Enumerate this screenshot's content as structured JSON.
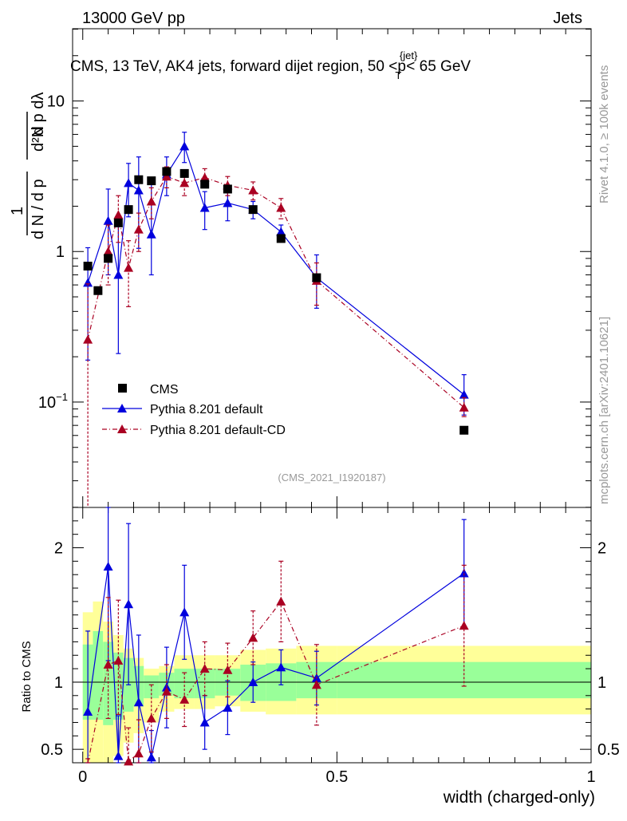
{
  "header": {
    "left": "13000 GeV pp",
    "right": "Jets"
  },
  "side_labels": {
    "rivet": "Rivet 4.1.0, ≥ 100k events",
    "mcplots": "mcplots.cern.ch [arXiv:2401.10621]"
  },
  "chart_data": {
    "type": "scatter",
    "title": "CMS, 13 TeV, AK4 jets, forward dijet region, 50 <p",
    "title_sup": "{jet}",
    "title_sub": "T",
    "title_suffix": "< 65 GeV",
    "analysis_id": "(CMS_2021_I1920187)",
    "xlabel": "width (charged-only)",
    "ylabel_main": "1/(dN/dpT) d²N/(dpT dλ)",
    "ylabel_ratio": "Ratio to CMS",
    "xlim": [
      -0.02,
      1.0
    ],
    "ylim_main_log10": [
      -1.7,
      1.48
    ],
    "ylim_ratio": [
      0.4,
      2.3
    ],
    "x_ticks": [
      {
        "v": 0,
        "label": "0"
      },
      {
        "v": 0.5,
        "label": "0.5"
      },
      {
        "v": 1,
        "label": "1"
      }
    ],
    "y_ticks_main": [
      {
        "v": 0.1,
        "label": "10",
        "sup": "−1"
      },
      {
        "v": 1,
        "label": "1",
        "sup": ""
      },
      {
        "v": 10,
        "label": "10",
        "sup": ""
      }
    ],
    "y_ticks_ratio": [
      {
        "v": 0.5,
        "label": "0.5"
      },
      {
        "v": 1,
        "label": "1"
      },
      {
        "v": 2,
        "label": "2"
      }
    ],
    "legend": [
      {
        "name": "CMS",
        "color": "#000000"
      },
      {
        "name": "Pythia 8.201 default",
        "color": "#0000dd"
      },
      {
        "name": "Pythia 8.201 default-CD",
        "color": "#aa0022"
      }
    ],
    "data": {
      "name": "CMS",
      "x": [
        0.01,
        0.03,
        0.05,
        0.07,
        0.09,
        0.11,
        0.135,
        0.165,
        0.2,
        0.24,
        0.285,
        0.335,
        0.39,
        0.46,
        0.75
      ],
      "y": [
        0.8,
        0.55,
        0.9,
        1.55,
        1.9,
        3.0,
        2.95,
        3.4,
        3.3,
        2.8,
        2.6,
        1.9,
        1.22,
        0.67,
        0.065
      ]
    },
    "series": [
      {
        "name": "Pythia 8.201 default",
        "color": "#0000dd",
        "style": "solid",
        "x": [
          0.01,
          0.05,
          0.07,
          0.09,
          0.11,
          0.135,
          0.165,
          0.2,
          0.24,
          0.285,
          0.335,
          0.39,
          0.46,
          0.75
        ],
        "y": [
          0.62,
          1.6,
          0.7,
          2.85,
          2.55,
          1.3,
          3.25,
          5.0,
          1.95,
          2.1,
          1.9,
          1.35,
          0.67,
          0.112
        ],
        "err_lo": [
          0.43,
          0.9,
          0.49,
          1.15,
          1.5,
          0.6,
          0.9,
          1.1,
          0.55,
          0.5,
          0.25,
          0.15,
          0.25,
          0.03
        ],
        "err_hi": [
          0.44,
          1.0,
          0.9,
          1.0,
          1.7,
          1.5,
          1.0,
          1.2,
          0.55,
          0.6,
          0.25,
          0.15,
          0.28,
          0.04
        ],
        "ratio": [
          0.78,
          1.86,
          0.45,
          1.58,
          0.85,
          0.44,
          0.96,
          1.52,
          0.7,
          0.81,
          1.0,
          1.11,
          1.03,
          1.81
        ],
        "ratio_lo": [
          0.5,
          0.7,
          0.3,
          0.6,
          0.5,
          0.2,
          0.3,
          0.35,
          0.2,
          0.2,
          0.15,
          0.13,
          0.2,
          0.4
        ],
        "ratio_hi": [
          0.6,
          0.7,
          0.3,
          0.6,
          0.5,
          0.2,
          0.3,
          0.35,
          0.2,
          0.2,
          0.15,
          0.13,
          0.2,
          0.4
        ]
      },
      {
        "name": "Pythia 8.201 default-CD",
        "color": "#aa0022",
        "style": "dashdot",
        "x": [
          0.01,
          0.05,
          0.07,
          0.09,
          0.11,
          0.135,
          0.165,
          0.2,
          0.24,
          0.285,
          0.335,
          0.39,
          0.46,
          0.75
        ],
        "y": [
          0.26,
          1.0,
          1.75,
          0.78,
          1.4,
          2.15,
          3.15,
          2.85,
          3.1,
          2.75,
          2.55,
          1.95,
          0.64,
          0.092
        ],
        "err_lo": [
          0.25,
          0.4,
          0.6,
          0.35,
          0.4,
          0.5,
          0.5,
          0.5,
          0.45,
          0.4,
          0.35,
          0.3,
          0.2,
          0.012
        ],
        "err_hi": [
          0.35,
          0.5,
          0.6,
          0.4,
          0.4,
          0.5,
          0.5,
          0.5,
          0.45,
          0.4,
          0.35,
          0.3,
          0.2,
          0.015
        ],
        "ratio": [
          0.33,
          1.13,
          1.16,
          0.41,
          0.47,
          0.73,
          0.93,
          0.87,
          1.1,
          1.09,
          1.33,
          1.6,
          0.98,
          1.42
        ],
        "ratio_lo": [
          0.1,
          0.4,
          0.4,
          0.2,
          0.25,
          0.25,
          0.2,
          0.2,
          0.2,
          0.2,
          0.2,
          0.3,
          0.3,
          0.45
        ],
        "ratio_hi": [
          0.1,
          0.5,
          0.45,
          0.25,
          0.25,
          0.25,
          0.2,
          0.2,
          0.2,
          0.2,
          0.2,
          0.3,
          0.3,
          0.45
        ]
      }
    ],
    "uncertainty_bands": {
      "edges": [
        0.0,
        0.02,
        0.04,
        0.06,
        0.08,
        0.1,
        0.12,
        0.15,
        0.18,
        0.22,
        0.26,
        0.31,
        0.36,
        0.42,
        0.5,
        1.0
      ],
      "inner_lo": [
        0.72,
        0.72,
        0.68,
        0.72,
        0.78,
        0.82,
        0.88,
        0.9,
        0.88,
        0.88,
        0.9,
        0.86,
        0.86,
        0.88,
        0.88
      ],
      "inner_hi": [
        1.28,
        1.38,
        1.3,
        1.22,
        1.18,
        1.12,
        1.05,
        1.07,
        1.1,
        1.1,
        1.1,
        1.13,
        1.14,
        1.15,
        1.15
      ],
      "outer_lo": [
        0.38,
        0.38,
        0.4,
        0.45,
        0.55,
        0.62,
        0.7,
        0.78,
        0.8,
        0.8,
        0.82,
        0.78,
        0.76,
        0.76,
        0.76
      ],
      "outer_hi": [
        1.52,
        1.6,
        1.45,
        1.35,
        1.25,
        1.18,
        1.1,
        1.12,
        1.2,
        1.2,
        1.2,
        1.24,
        1.25,
        1.27,
        1.27
      ]
    }
  }
}
